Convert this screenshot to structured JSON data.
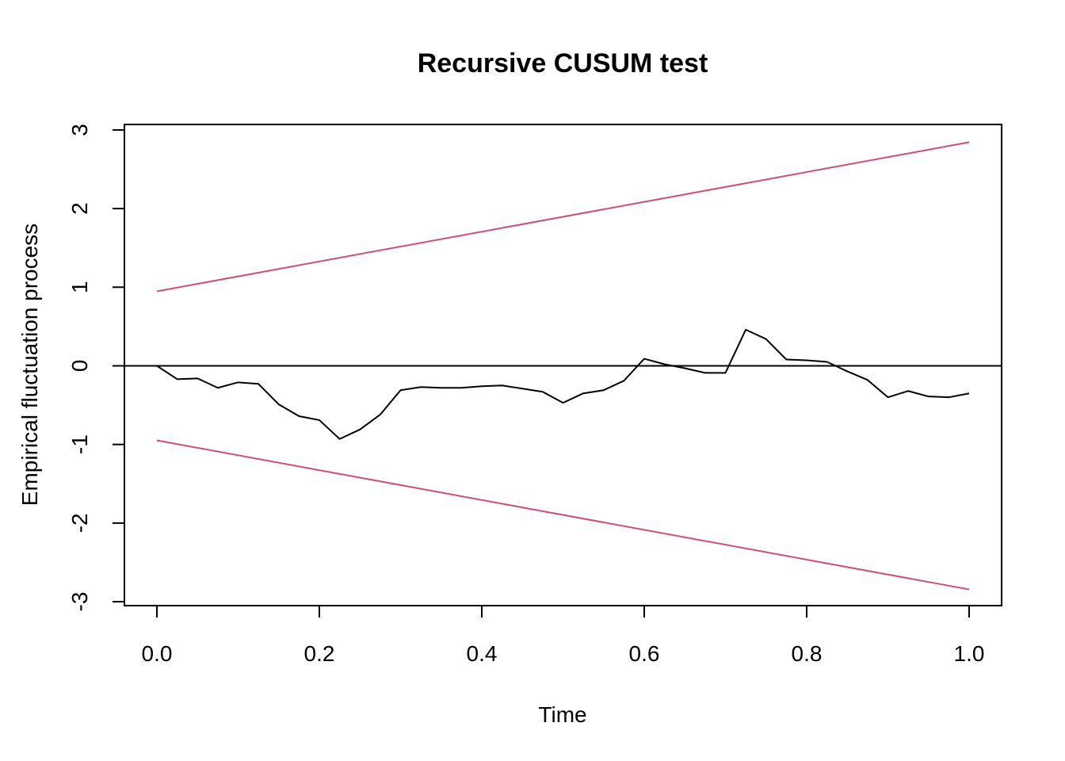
{
  "chart_data": {
    "type": "line",
    "title": "Recursive CUSUM test",
    "xlabel": "Time",
    "ylabel": "Empirical fluctuation process",
    "xlim": [
      -0.04,
      1.04
    ],
    "ylim": [
      -3.05,
      3.07
    ],
    "x_ticks": [
      0.0,
      0.2,
      0.4,
      0.6,
      0.8,
      1.0
    ],
    "x_tick_labels": [
      "0.0",
      "0.2",
      "0.4",
      "0.6",
      "0.8",
      "1.0"
    ],
    "y_ticks": [
      -3,
      -2,
      -1,
      0,
      1,
      2,
      3
    ],
    "y_tick_labels": [
      "-3",
      "-2",
      "-1",
      "0",
      "1",
      "2",
      "3"
    ],
    "grid": false,
    "series": [
      {
        "role": "process",
        "color": "#000000",
        "x": [
          0.0,
          0.025,
          0.05,
          0.075,
          0.1,
          0.125,
          0.15,
          0.175,
          0.2,
          0.225,
          0.25,
          0.275,
          0.3,
          0.325,
          0.35,
          0.375,
          0.4,
          0.425,
          0.45,
          0.475,
          0.5,
          0.525,
          0.55,
          0.575,
          0.6,
          0.625,
          0.65,
          0.675,
          0.7,
          0.725,
          0.75,
          0.775,
          0.8,
          0.825,
          0.85,
          0.875,
          0.9,
          0.925,
          0.95,
          0.975,
          1.0
        ],
        "values": [
          0.0,
          -0.17,
          -0.16,
          -0.28,
          -0.21,
          -0.23,
          -0.49,
          -0.64,
          -0.69,
          -0.93,
          -0.81,
          -0.62,
          -0.31,
          -0.27,
          -0.28,
          -0.28,
          -0.26,
          -0.25,
          -0.29,
          -0.33,
          -0.47,
          -0.35,
          -0.31,
          -0.19,
          0.09,
          0.02,
          -0.03,
          -0.09,
          -0.09,
          0.46,
          0.34,
          0.08,
          0.07,
          0.05,
          -0.07,
          -0.18,
          -0.4,
          -0.32,
          -0.39,
          -0.4,
          -0.35
        ]
      },
      {
        "role": "upper-boundary",
        "color": "#cd4f73",
        "x": [
          0.0,
          1.0
        ],
        "values": [
          0.948,
          2.844
        ]
      },
      {
        "role": "lower-boundary",
        "color": "#cd4f73",
        "x": [
          0.0,
          1.0
        ],
        "values": [
          -0.948,
          -2.844
        ]
      }
    ],
    "reference_line": {
      "y": 0,
      "color": "#000000"
    }
  }
}
